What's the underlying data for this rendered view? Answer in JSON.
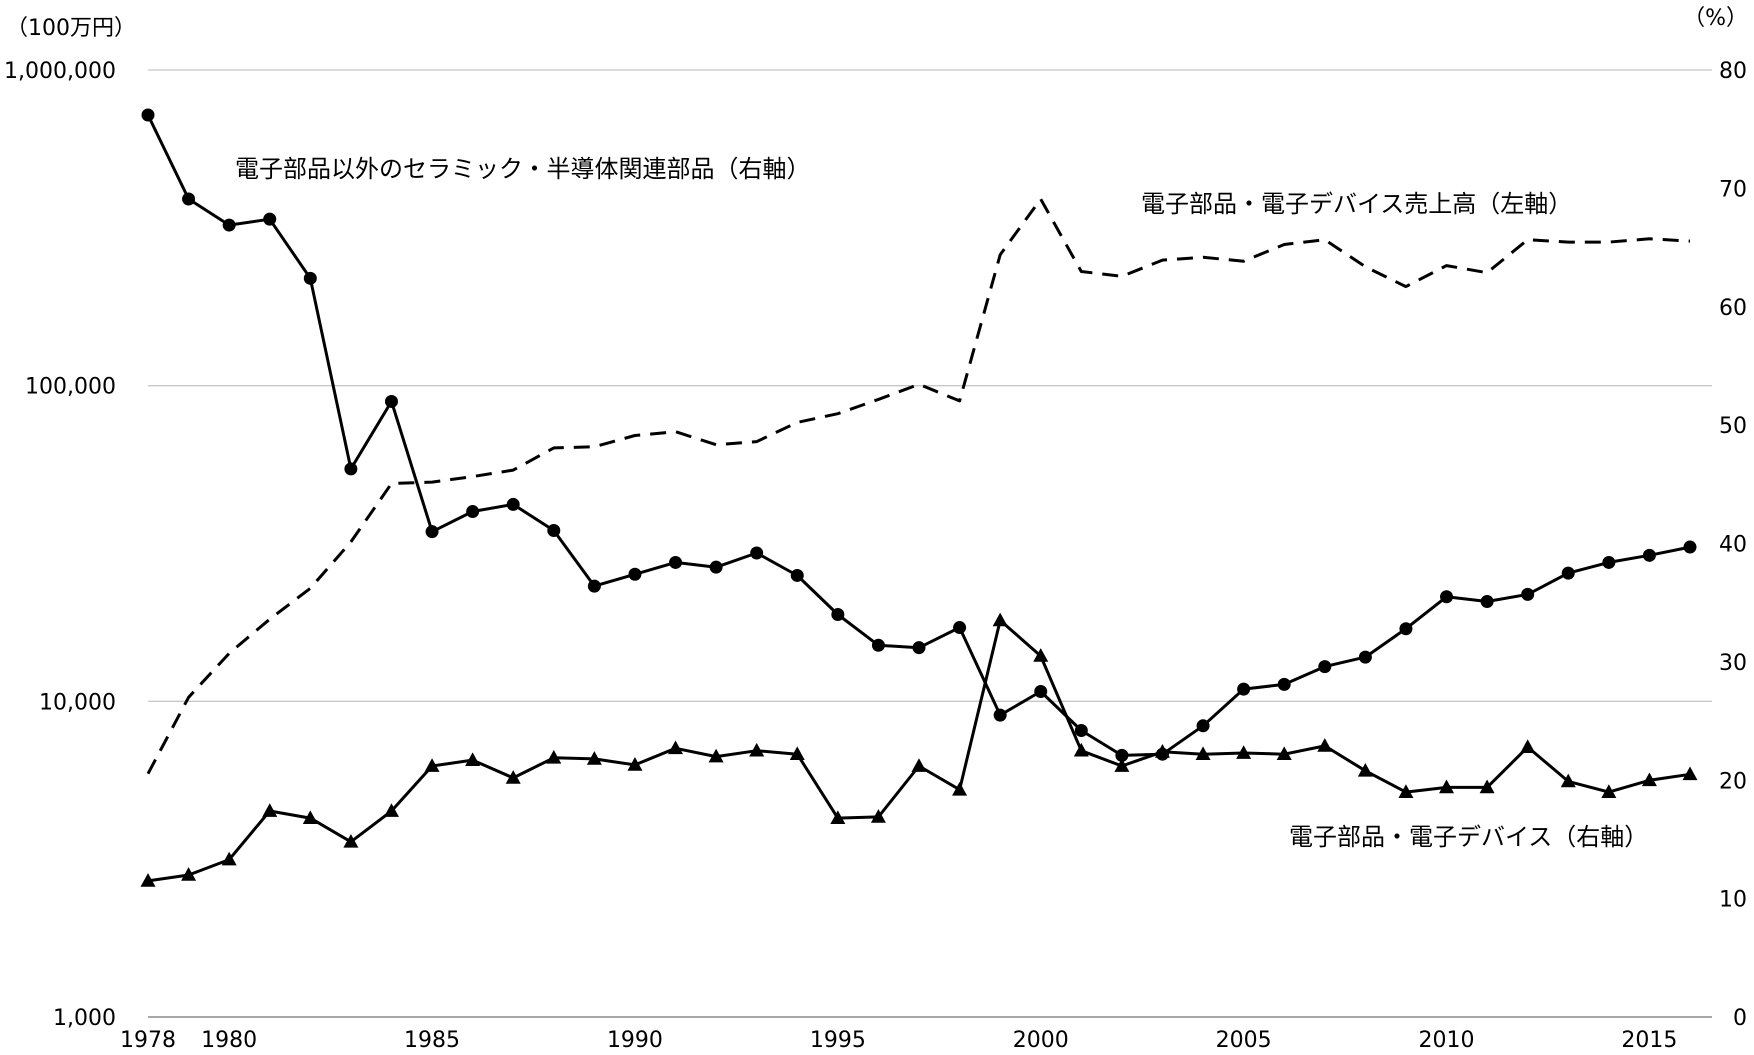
{
  "chart_data": {
    "type": "line",
    "title": "",
    "left_axis": {
      "unit_label": "（100万円）",
      "scale": "log",
      "ylim": [
        1000,
        1000000
      ],
      "ticks": [
        1000,
        10000,
        100000,
        1000000
      ],
      "tick_labels": [
        "1,000",
        "10,000",
        "100,000",
        "1,000,000"
      ]
    },
    "right_axis": {
      "unit_label": "（%）",
      "ylim": [
        0,
        80
      ],
      "ticks": [
        0,
        10,
        20,
        30,
        40,
        50,
        60,
        70,
        80
      ],
      "tick_labels": [
        "0",
        "10",
        "20",
        "30",
        "40",
        "50",
        "60",
        "70",
        "80"
      ]
    },
    "x": [
      1978,
      1979,
      1980,
      1981,
      1982,
      1983,
      1984,
      1985,
      1986,
      1987,
      1988,
      1989,
      1990,
      1991,
      1992,
      1993,
      1994,
      1995,
      1996,
      1997,
      1998,
      1999,
      2000,
      2001,
      2002,
      2003,
      2004,
      2005,
      2006,
      2007,
      2008,
      2009,
      2010,
      2011,
      2012,
      2013,
      2014,
      2015,
      2016
    ],
    "x_tick_values": [
      1978,
      1980,
      1985,
      1990,
      1995,
      2000,
      2005,
      2010,
      2015
    ],
    "x_tick_labels": [
      "1978",
      "1980",
      "1985",
      "1990",
      "1995",
      "2000",
      "2005",
      "2010",
      "2015"
    ],
    "xlim": [
      1978,
      2016
    ],
    "grid": true,
    "legend": "none",
    "series": [
      {
        "axis": "left",
        "style": "dashed",
        "marker": "none",
        "values": [
          5900,
          10300,
          14200,
          18200,
          22800,
          32000,
          49000,
          49500,
          51500,
          54000,
          63500,
          64000,
          69500,
          71500,
          65000,
          66500,
          76500,
          81500,
          90500,
          101000,
          89500,
          260000,
          390000,
          230000,
          222000,
          250000,
          255000,
          248000,
          280000,
          290000,
          238000,
          206000,
          240000,
          228000,
          290000,
          285000,
          285000,
          292000,
          287000
        ]
      },
      {
        "axis": "right",
        "style": "solid",
        "marker": "circle",
        "values": [
          76.2,
          69.1,
          66.9,
          67.4,
          62.4,
          46.3,
          52.0,
          41.0,
          42.7,
          43.3,
          41.1,
          36.4,
          37.4,
          38.4,
          38.0,
          39.2,
          37.3,
          34.0,
          31.4,
          31.2,
          32.9,
          25.5,
          27.5,
          24.2,
          22.1,
          22.2,
          24.6,
          27.7,
          28.1,
          29.6,
          30.4,
          32.8,
          35.5,
          35.1,
          35.7,
          37.5,
          38.4,
          39.0,
          39.7
        ]
      },
      {
        "axis": "right",
        "style": "solid",
        "marker": "triangle",
        "values": [
          11.5,
          12.0,
          13.3,
          17.4,
          16.8,
          14.8,
          17.4,
          21.2,
          21.7,
          20.2,
          21.9,
          21.8,
          21.3,
          22.7,
          22.0,
          22.5,
          22.2,
          16.8,
          16.9,
          21.2,
          19.2,
          33.5,
          30.5,
          22.5,
          21.2,
          22.4,
          22.2,
          22.3,
          22.2,
          22.9,
          20.8,
          19.0,
          19.4,
          19.4,
          22.8,
          19.9,
          19.0,
          20.0,
          20.5
        ]
      }
    ],
    "annotations": [
      {
        "text": "電子部品以外のセラミック・半導体関連部品（右軸）",
        "series": 1
      },
      {
        "text": "電子部品・電子デバイス売上高（左軸）",
        "series": 0
      },
      {
        "text": "電子部品・電子デバイス（右軸）",
        "series": 2
      }
    ]
  }
}
